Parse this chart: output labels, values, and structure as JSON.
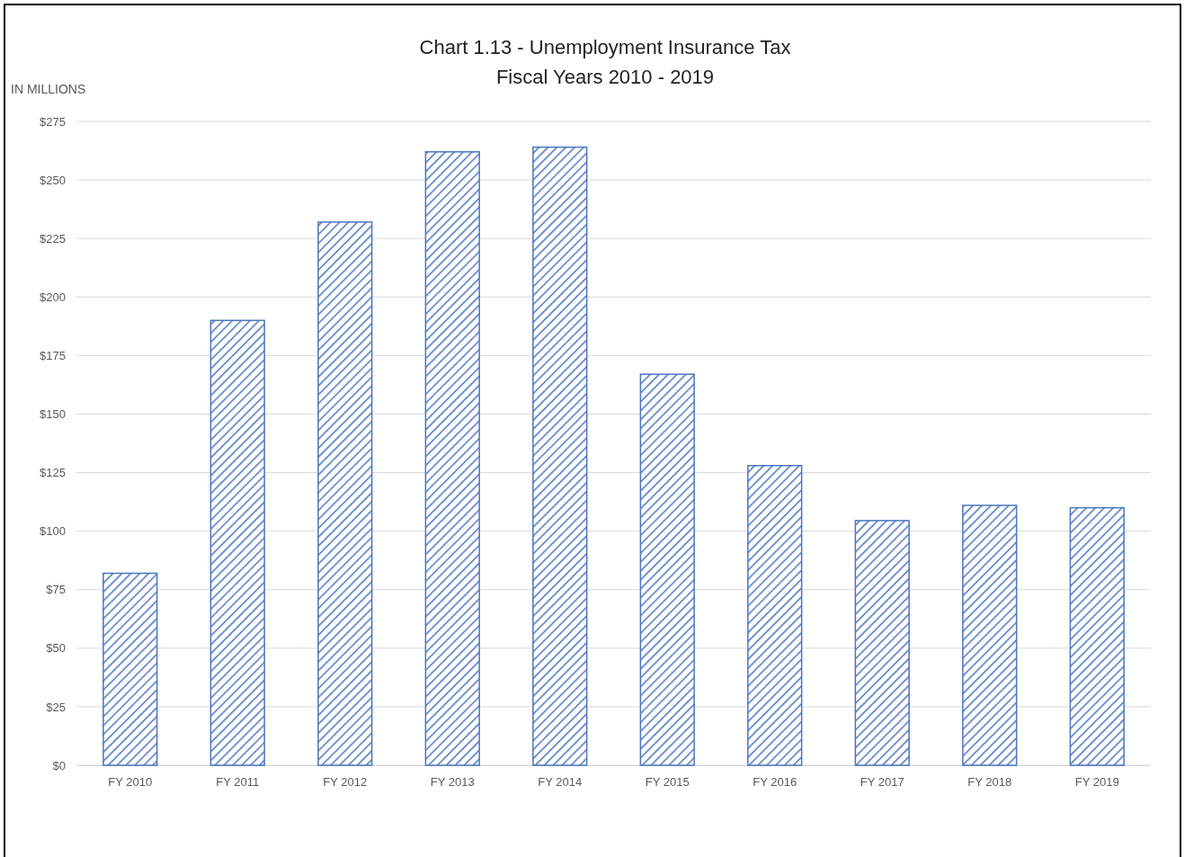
{
  "chart_data": {
    "type": "bar",
    "title": "Chart 1.13 - Unemployment  Insurance Tax",
    "subtitle": "Fiscal Years 2010 - 2019",
    "ylabel": "IN MILLIONS",
    "categories": [
      "FY 2010",
      "FY 2011",
      "FY 2012",
      "FY 2013",
      "FY 2014",
      "FY 2015",
      "FY 2016",
      "FY 2017",
      "FY 2018",
      "FY 2019"
    ],
    "values": [
      82,
      190,
      232,
      262,
      264,
      167,
      128,
      104.5,
      111,
      110
    ],
    "color": "#4a76be",
    "ylim": [
      0,
      275
    ],
    "yticks": [
      {
        "value": 0,
        "label": "$0"
      },
      {
        "value": 25,
        "label": "$25"
      },
      {
        "value": 50,
        "label": "$50"
      },
      {
        "value": 75,
        "label": "$75"
      },
      {
        "value": 100,
        "label": "$100"
      },
      {
        "value": 125,
        "label": "$125"
      },
      {
        "value": 150,
        "label": "$150"
      },
      {
        "value": 175,
        "label": "$175"
      },
      {
        "value": 200,
        "label": "$200"
      },
      {
        "value": 225,
        "label": "$225"
      },
      {
        "value": 250,
        "label": "$250"
      },
      {
        "value": 275,
        "label": "$275"
      }
    ],
    "grid": "y"
  }
}
